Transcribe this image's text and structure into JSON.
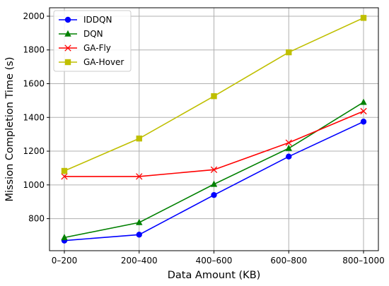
{
  "chart_data": {
    "type": "line",
    "title": "",
    "xlabel": "Data Amount (KB)",
    "ylabel": "Mission Completion Time (s)",
    "categories": [
      "0–200",
      "200–400",
      "400–600",
      "600–800",
      "800–1000"
    ],
    "ylim": [
      610,
      2050
    ],
    "yticks": [
      800,
      1000,
      1200,
      1400,
      1600,
      1800,
      2000
    ],
    "grid": true,
    "legend_position": "top-left",
    "series": [
      {
        "name": "IDDQN",
        "color": "#0000ff",
        "marker": "circle",
        "values": [
          670,
          705,
          940,
          1168,
          1375
        ]
      },
      {
        "name": "DQN",
        "color": "#008000",
        "marker": "triangle",
        "values": [
          688,
          777,
          1004,
          1217,
          1490
        ]
      },
      {
        "name": "GA-Fly",
        "color": "#ff0000",
        "marker": "x",
        "values": [
          1050,
          1050,
          1090,
          1250,
          1437
        ]
      },
      {
        "name": "GA-Hover",
        "color": "#bfbf00",
        "marker": "square",
        "values": [
          1083,
          1275,
          1526,
          1786,
          1990
        ]
      }
    ]
  }
}
